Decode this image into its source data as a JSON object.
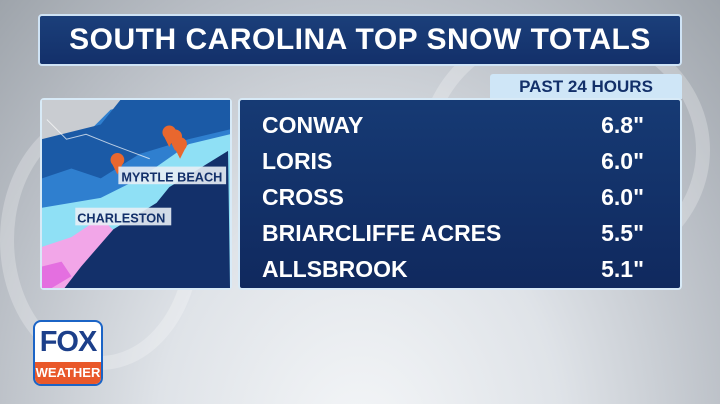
{
  "title": "SOUTH CAROLINA TOP SNOW TOTALS",
  "period": "PAST 24 HOURS",
  "map": {
    "labels": [
      "MYRTLE BEACH",
      "CHARLESTON"
    ],
    "marker_color": "#e9672e"
  },
  "rows": [
    {
      "location": "CONWAY",
      "total": "6.8\""
    },
    {
      "location": "LORIS",
      "total": "6.0\""
    },
    {
      "location": "CROSS",
      "total": "6.0\""
    },
    {
      "location": "BRIARCLIFFE ACRES",
      "total": "5.5\""
    },
    {
      "location": "ALLSBROOK",
      "total": "5.1\""
    }
  ],
  "logo": {
    "top": "FOX",
    "bottom": "WEATHER"
  },
  "colors": {
    "navy": "#13306a",
    "accent": "#cfe6f7",
    "logo_orange": "#e9582a"
  }
}
